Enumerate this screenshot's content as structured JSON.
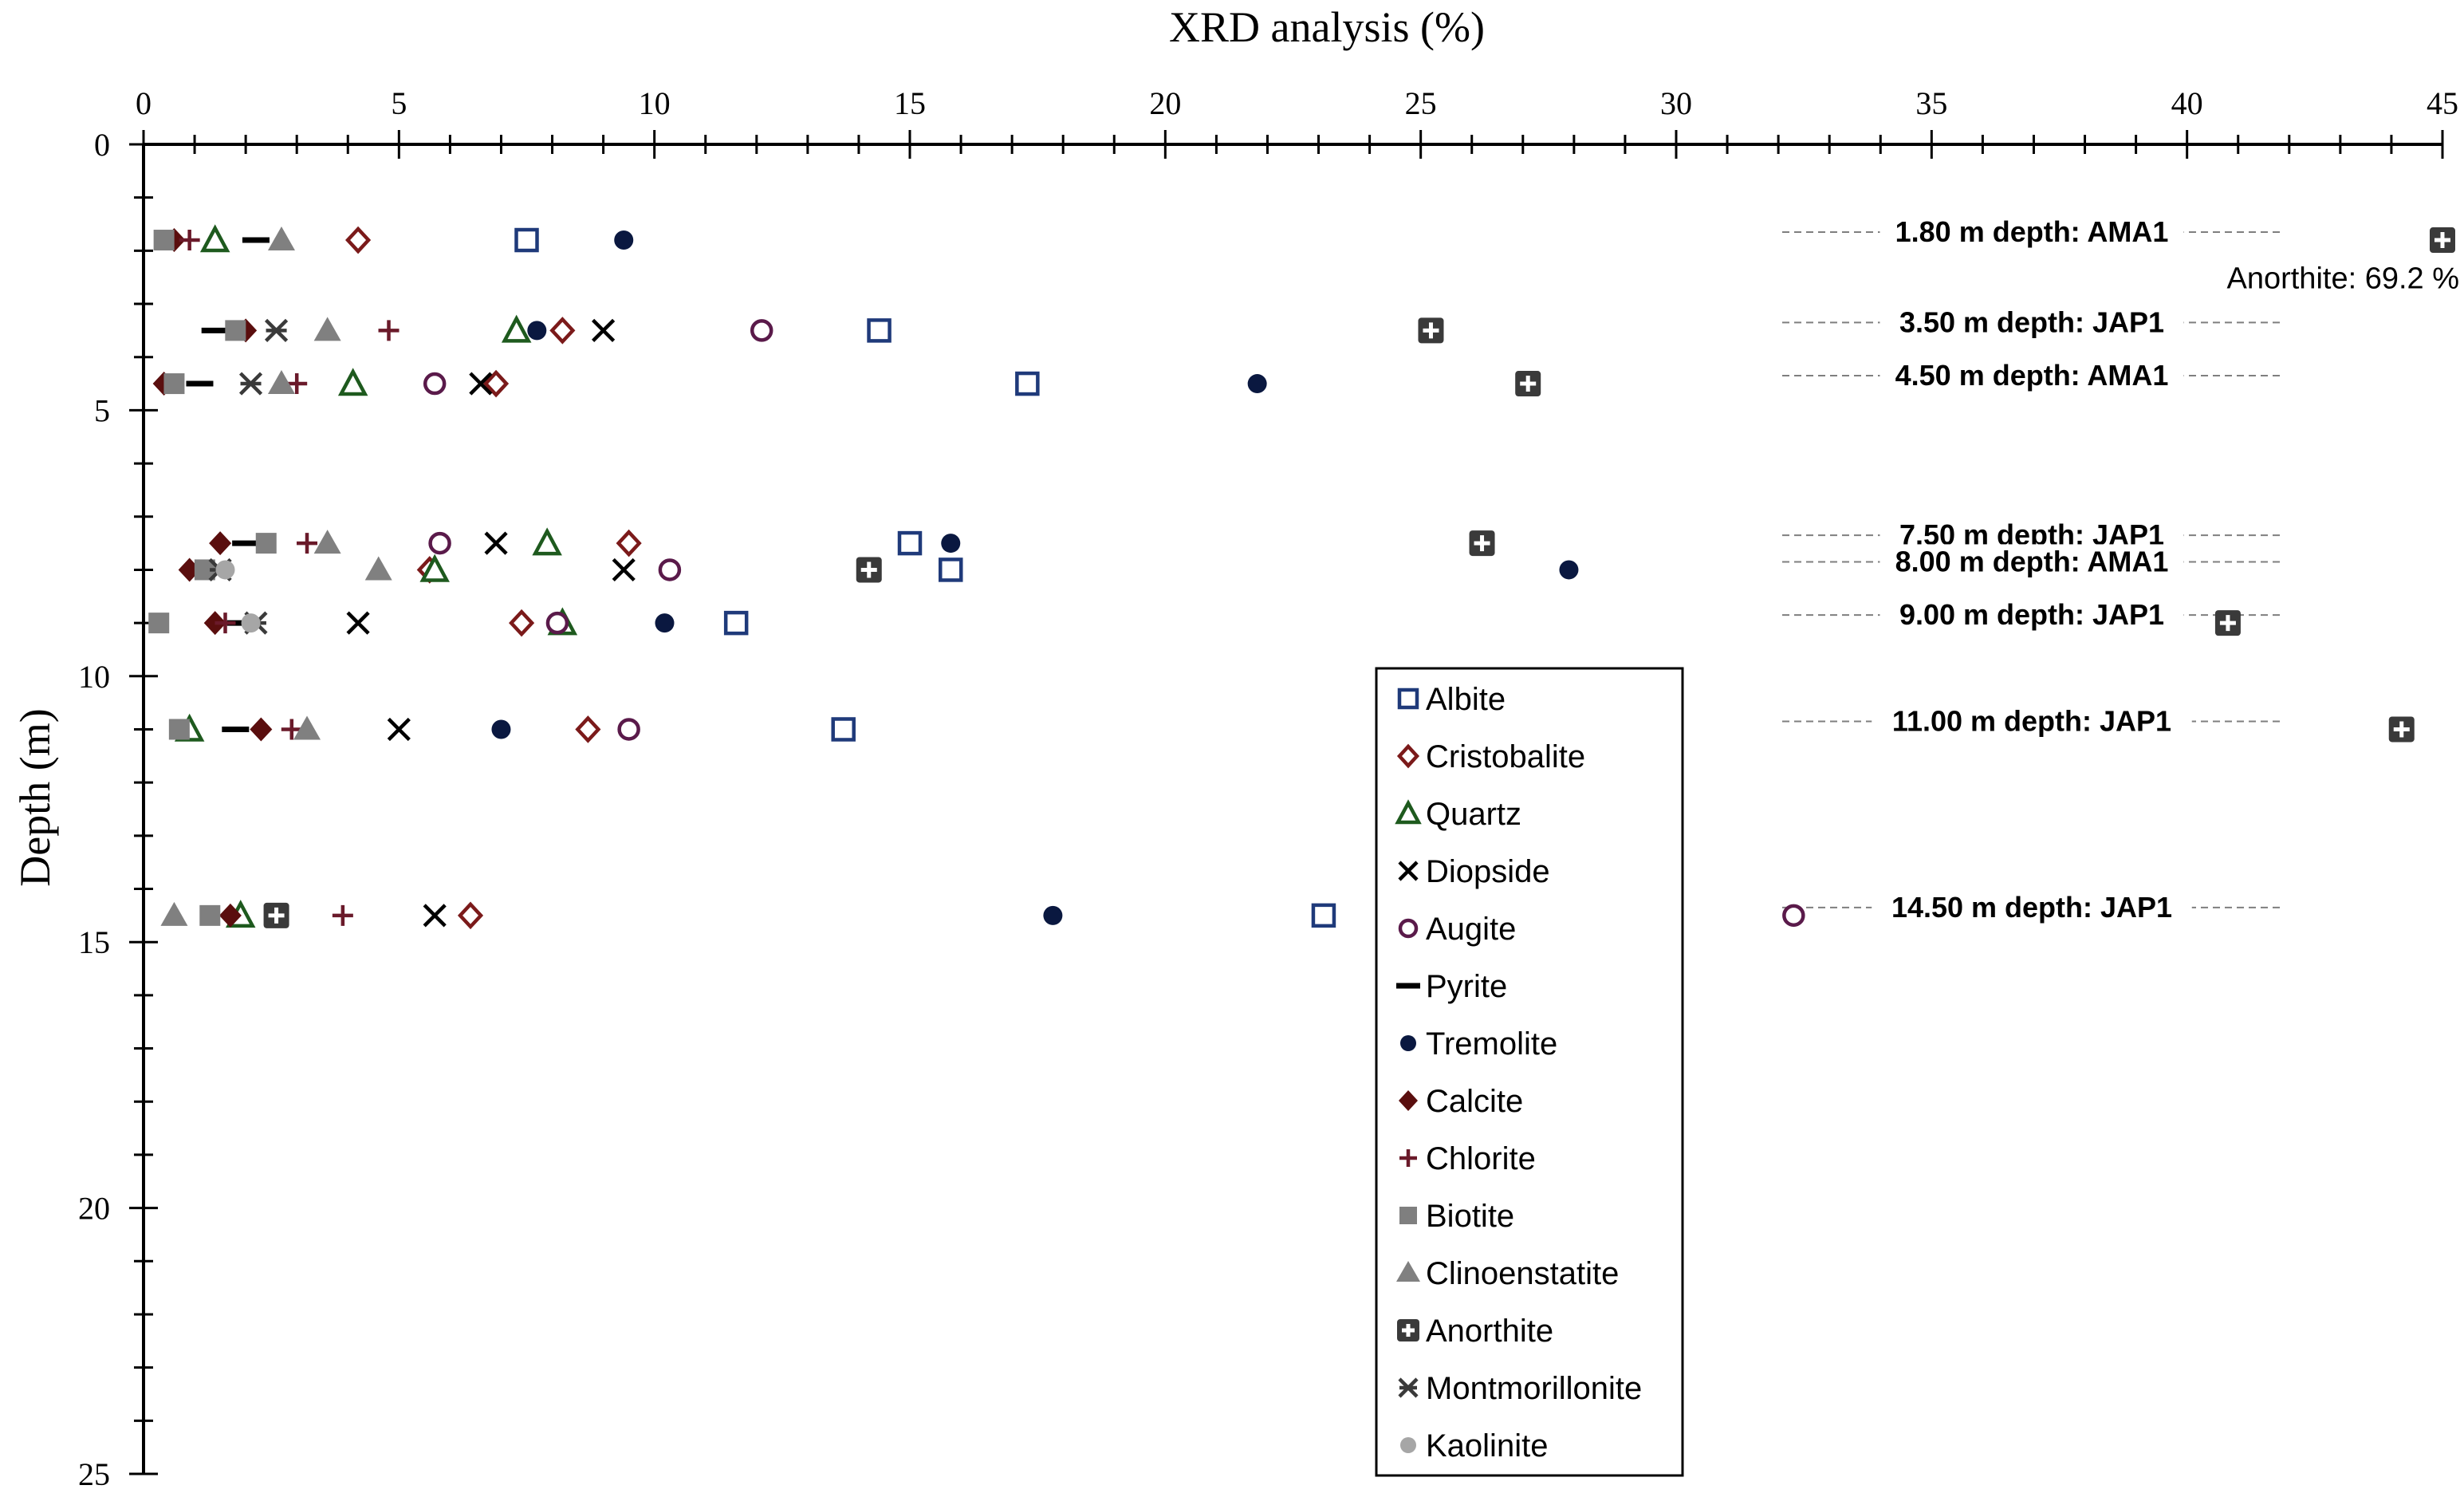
{
  "chart_data": {
    "type": "scatter",
    "title": "XRD analysis (%)",
    "xlabel": "XRD analysis (%)",
    "ylabel": "Depth (m)",
    "xlim": [
      0,
      45
    ],
    "ylim": [
      0,
      25
    ],
    "x_ticks": [
      0,
      5,
      10,
      15,
      20,
      25,
      30,
      35,
      40,
      45
    ],
    "y_ticks": [
      0,
      5,
      10,
      15,
      20,
      25
    ],
    "x_axis_position": "top",
    "y_axis_inverted": true,
    "grid": false,
    "legend_position": "center-right",
    "series": [
      {
        "name": "Albite",
        "marker": "square-open",
        "color": "#1F3A7A",
        "points": [
          [
            7.5,
            1.8
          ],
          [
            14.4,
            3.5
          ],
          [
            17.3,
            4.5
          ],
          [
            15.0,
            7.5
          ],
          [
            15.8,
            8.0
          ],
          [
            11.6,
            9.0
          ],
          [
            13.7,
            11.0
          ],
          [
            23.1,
            14.5
          ]
        ]
      },
      {
        "name": "Cristobalite",
        "marker": "diamond-open",
        "color": "#7B1A1A",
        "points": [
          [
            4.2,
            1.8
          ],
          [
            8.2,
            3.5
          ],
          [
            6.9,
            4.5
          ],
          [
            9.5,
            7.5
          ],
          [
            5.6,
            8.0
          ],
          [
            7.4,
            9.0
          ],
          [
            8.7,
            11.0
          ],
          [
            6.4,
            14.5
          ]
        ]
      },
      {
        "name": "Quartz",
        "marker": "triangle-open",
        "color": "#1E5A1E",
        "points": [
          [
            1.4,
            1.8
          ],
          [
            7.3,
            3.5
          ],
          [
            4.1,
            4.5
          ],
          [
            7.9,
            7.5
          ],
          [
            5.7,
            8.0
          ],
          [
            8.2,
            9.0
          ],
          [
            0.9,
            11.0
          ],
          [
            1.9,
            14.5
          ]
        ]
      },
      {
        "name": "Diopside",
        "marker": "x",
        "color": "#000000",
        "points": [
          [
            9.0,
            3.5
          ],
          [
            6.6,
            4.5
          ],
          [
            6.9,
            7.5
          ],
          [
            9.4,
            8.0
          ],
          [
            4.2,
            9.0
          ],
          [
            5.0,
            11.0
          ],
          [
            5.7,
            14.5
          ]
        ]
      },
      {
        "name": "Augite",
        "marker": "circle-open",
        "color": "#5A1A4A",
        "points": [
          [
            12.1,
            3.5
          ],
          [
            5.7,
            4.5
          ],
          [
            5.8,
            7.5
          ],
          [
            10.3,
            8.0
          ],
          [
            8.1,
            9.0
          ],
          [
            9.5,
            11.0
          ],
          [
            32.3,
            14.5
          ]
        ]
      },
      {
        "name": "Pyrite",
        "marker": "dash",
        "color": "#000000",
        "points": [
          [
            2.2,
            1.8
          ],
          [
            1.4,
            3.5
          ],
          [
            1.1,
            4.5
          ],
          [
            2.0,
            7.5
          ],
          [
            1.9,
            9.0
          ],
          [
            1.8,
            11.0
          ]
        ]
      },
      {
        "name": "Tremolite",
        "marker": "circle-filled",
        "color": "#0A1840",
        "points": [
          [
            9.4,
            1.8
          ],
          [
            7.7,
            3.5
          ],
          [
            21.8,
            4.5
          ],
          [
            15.8,
            7.5
          ],
          [
            27.9,
            8.0
          ],
          [
            10.2,
            9.0
          ],
          [
            7.0,
            11.0
          ],
          [
            17.8,
            14.5
          ]
        ]
      },
      {
        "name": "Calcite",
        "marker": "diamond-filled",
        "color": "#5A0E0E",
        "points": [
          [
            0.6,
            1.8
          ],
          [
            2.0,
            3.5
          ],
          [
            0.4,
            4.5
          ],
          [
            1.5,
            7.5
          ],
          [
            0.9,
            8.0
          ],
          [
            1.4,
            9.0
          ],
          [
            2.3,
            11.0
          ],
          [
            1.7,
            14.5
          ]
        ]
      },
      {
        "name": "Chlorite",
        "marker": "plus",
        "color": "#6A1A2A",
        "points": [
          [
            0.9,
            1.8
          ],
          [
            4.8,
            3.5
          ],
          [
            3.0,
            4.5
          ],
          [
            3.2,
            7.5
          ],
          [
            1.6,
            9.0
          ],
          [
            2.9,
            11.0
          ],
          [
            3.9,
            14.5
          ]
        ]
      },
      {
        "name": "Biotite",
        "marker": "square-filled",
        "color": "#7F7F7F",
        "points": [
          [
            0.4,
            1.8
          ],
          [
            1.8,
            3.5
          ],
          [
            0.6,
            4.5
          ],
          [
            2.4,
            7.5
          ],
          [
            1.2,
            8.0
          ],
          [
            0.3,
            9.0
          ],
          [
            0.7,
            11.0
          ],
          [
            1.3,
            14.5
          ]
        ]
      },
      {
        "name": "Clinoenstatite",
        "marker": "triangle-filled",
        "color": "#808080",
        "points": [
          [
            2.7,
            1.8
          ],
          [
            3.6,
            3.5
          ],
          [
            2.7,
            4.5
          ],
          [
            3.6,
            7.5
          ],
          [
            4.6,
            8.0
          ],
          [
            3.2,
            11.0
          ],
          [
            0.6,
            14.5
          ]
        ]
      },
      {
        "name": "Anorthite",
        "marker": "square-cross",
        "color": "#3A3A3A",
        "points": [
          [
            45.0,
            1.8
          ],
          [
            25.2,
            3.5
          ],
          [
            27.1,
            4.5
          ],
          [
            26.2,
            7.5
          ],
          [
            14.2,
            8.0
          ],
          [
            40.8,
            9.0
          ],
          [
            44.2,
            11.0
          ],
          [
            2.6,
            14.5
          ]
        ]
      },
      {
        "name": "Montmorillonite",
        "marker": "asterisk",
        "color": "#3A3A3A",
        "points": [
          [
            2.6,
            3.5
          ],
          [
            2.1,
            4.5
          ],
          [
            1.5,
            8.0
          ],
          [
            2.2,
            9.0
          ]
        ]
      },
      {
        "name": "Kaolinite",
        "marker": "circle-gray",
        "color": "#A6A6A6",
        "points": [
          [
            1.6,
            8.0
          ],
          [
            2.1,
            9.0
          ]
        ]
      }
    ],
    "annotations": [
      {
        "text": "1.80 m depth: AMA1",
        "depth": 1.8
      },
      {
        "text": "3.50 m depth: JAP1",
        "depth": 3.5
      },
      {
        "text": "4.50 m depth: AMA1",
        "depth": 4.5
      },
      {
        "text": "7.50 m depth: JAP1",
        "depth": 7.5
      },
      {
        "text": "8.00 m depth: AMA1",
        "depth": 8.0
      },
      {
        "text": "9.00 m depth: JAP1",
        "depth": 9.0
      },
      {
        "text": "11.00 m depth: JAP1",
        "depth": 11.0
      },
      {
        "text": "14.50 m depth: JAP1",
        "depth": 14.5
      }
    ],
    "note": "Anorthite: 69.2 %"
  }
}
